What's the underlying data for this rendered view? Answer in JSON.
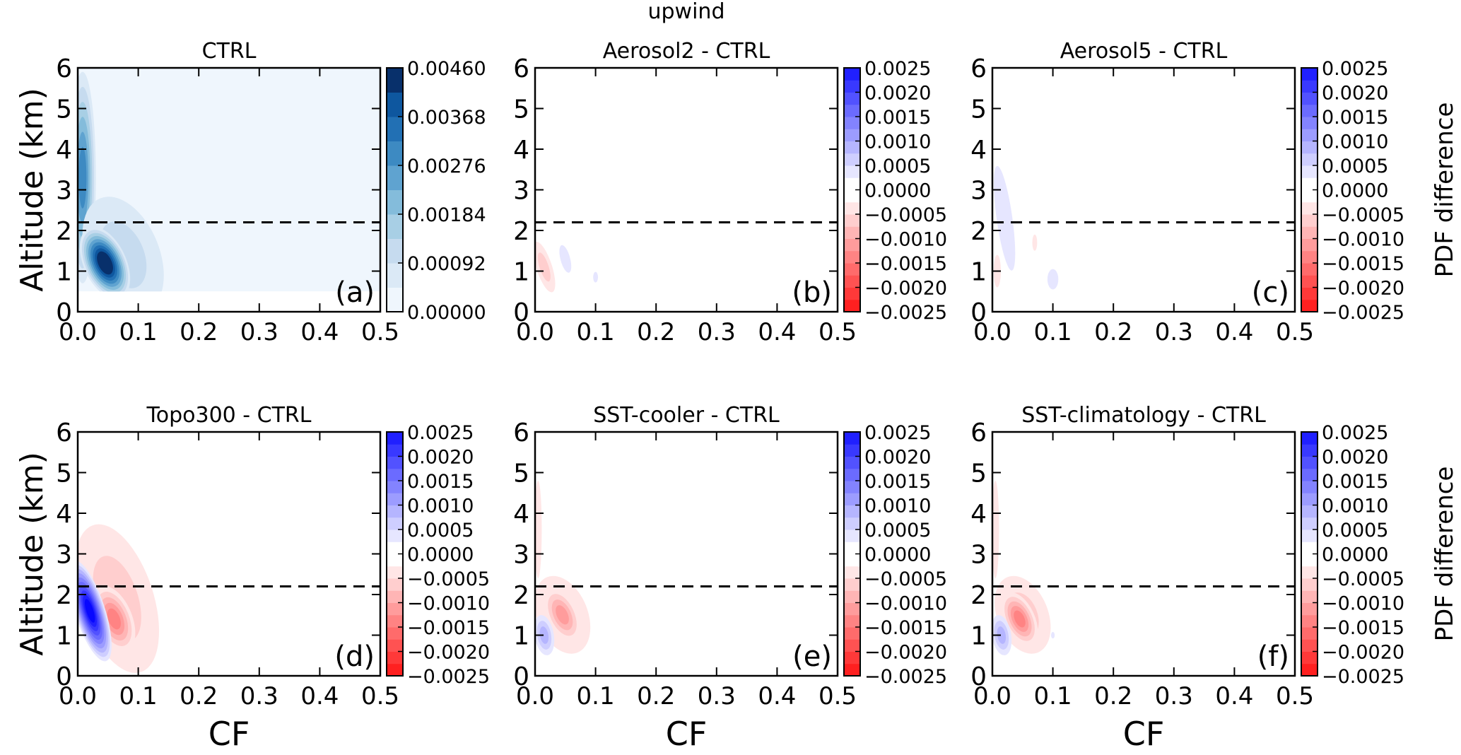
{
  "chart_data": {
    "type": "heatmap",
    "suptitle": "upwind",
    "xlabel": "CF",
    "ylabel": "Altitude (km)",
    "colorbar_label": "PDF difference",
    "xlim": [
      0,
      0.5
    ],
    "ylim": [
      0,
      6
    ],
    "xticks": [
      "0.0",
      "0.1",
      "0.2",
      "0.3",
      "0.4",
      "0.5"
    ],
    "yticks": [
      "0",
      "1",
      "2",
      "3",
      "4",
      "5",
      "6"
    ],
    "dashed_line_altitude_km": 2.2,
    "ctrl_colorbar": {
      "range": [
        0,
        0.0046
      ],
      "levels": 10,
      "ticks": [
        "0.00000",
        "0.00092",
        "0.00184",
        "0.00276",
        "0.00368",
        "0.00460"
      ]
    },
    "diff_colorbar": {
      "range": [
        -0.0025,
        0.0025
      ],
      "levels": 20,
      "ticks": [
        "0.0025",
        "0.0020",
        "0.0015",
        "0.0010",
        "0.0005",
        "0.0000",
        "−0.0005",
        "−0.0010",
        "−0.0015",
        "−0.0020",
        "−0.0025"
      ]
    },
    "panels": [
      {
        "title": "CTRL",
        "label": "(a)",
        "kind": "ctrl",
        "base_min_alt": 0.5,
        "features": [
          {
            "cf": 0.008,
            "alt": 3.3,
            "rcf": 0.022,
            "ralt": 2.6,
            "rot": 0,
            "peak": 0.0028
          },
          {
            "cf": 0.075,
            "alt": 1.4,
            "rcf": 0.06,
            "ralt": 1.5,
            "rot": -22,
            "peak": 0.0012
          },
          {
            "cf": 0.045,
            "alt": 1.2,
            "rcf": 0.035,
            "ralt": 0.95,
            "rot": -25,
            "peak": 0.0046
          }
        ]
      },
      {
        "title": "Aerosol2 - CTRL",
        "label": "(b)",
        "kind": "diff",
        "features": [
          {
            "cf": 0.015,
            "alt": 1.1,
            "rcf": 0.013,
            "ralt": 0.65,
            "rot": -18,
            "peak": -0.0006
          },
          {
            "cf": 0.05,
            "alt": 1.3,
            "rcf": 0.008,
            "ralt": 0.35,
            "rot": -15,
            "peak": 0.0004
          },
          {
            "cf": 0.1,
            "alt": 0.85,
            "rcf": 0.004,
            "ralt": 0.13,
            "rot": 0,
            "peak": 0.0004
          }
        ]
      },
      {
        "title": "Aerosol5 - CTRL",
        "label": "(c)",
        "kind": "diff",
        "features": [
          {
            "cf": 0.02,
            "alt": 2.3,
            "rcf": 0.013,
            "ralt": 1.3,
            "rot": -8,
            "peak": 0.0004
          },
          {
            "cf": 0.1,
            "alt": 0.8,
            "rcf": 0.009,
            "ralt": 0.25,
            "rot": 0,
            "peak": 0.0004
          },
          {
            "cf": 0.008,
            "alt": 1.0,
            "rcf": 0.006,
            "ralt": 0.4,
            "rot": 0,
            "peak": -0.0004
          },
          {
            "cf": 0.07,
            "alt": 1.7,
            "rcf": 0.004,
            "ralt": 0.2,
            "rot": 0,
            "peak": -0.0004
          }
        ]
      },
      {
        "title": "Topo300 - CTRL",
        "label": "(d)",
        "kind": "diff",
        "features": [
          {
            "cf": 0.065,
            "alt": 1.9,
            "rcf": 0.06,
            "ralt": 1.9,
            "rot": -18,
            "peak": -0.0005
          },
          {
            "cf": 0.06,
            "alt": 1.4,
            "rcf": 0.03,
            "ralt": 0.85,
            "rot": -22,
            "peak": -0.0013
          },
          {
            "cf": 0.02,
            "alt": 1.6,
            "rcf": 0.025,
            "ralt": 1.3,
            "rot": -18,
            "peak": 0.0025
          }
        ]
      },
      {
        "title": "SST-cooler - CTRL",
        "label": "(e)",
        "kind": "diff",
        "features": [
          {
            "cf": 0.005,
            "alt": 3.6,
            "rcf": 0.006,
            "ralt": 1.2,
            "rot": 0,
            "peak": -0.0004
          },
          {
            "cf": 0.045,
            "alt": 1.5,
            "rcf": 0.042,
            "ralt": 1.0,
            "rot": -22,
            "peak": -0.0005
          },
          {
            "cf": 0.045,
            "alt": 1.5,
            "rcf": 0.025,
            "ralt": 0.7,
            "rot": -25,
            "peak": -0.0012
          },
          {
            "cf": 0.015,
            "alt": 1.0,
            "rcf": 0.016,
            "ralt": 0.5,
            "rot": -10,
            "peak": 0.0009
          }
        ]
      },
      {
        "title": "SST-climatology - CTRL",
        "label": "(f)",
        "kind": "diff",
        "features": [
          {
            "cf": 0.005,
            "alt": 3.6,
            "rcf": 0.006,
            "ralt": 1.2,
            "rot": 0,
            "peak": -0.0004
          },
          {
            "cf": 0.05,
            "alt": 1.5,
            "rcf": 0.042,
            "ralt": 1.0,
            "rot": -22,
            "peak": -0.0005
          },
          {
            "cf": 0.045,
            "alt": 1.4,
            "rcf": 0.025,
            "ralt": 0.7,
            "rot": -25,
            "peak": -0.0014
          },
          {
            "cf": 0.015,
            "alt": 1.0,
            "rcf": 0.016,
            "ralt": 0.5,
            "rot": -10,
            "peak": 0.0009
          },
          {
            "cf": 0.1,
            "alt": 1.0,
            "rcf": 0.003,
            "ralt": 0.08,
            "rot": 0,
            "peak": 0.0004
          }
        ]
      }
    ]
  }
}
